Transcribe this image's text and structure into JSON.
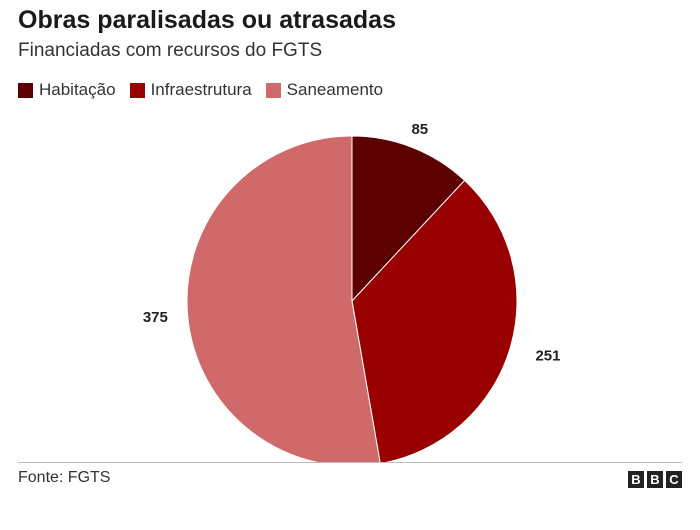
{
  "chart_data": {
    "type": "pie",
    "title": "Obras paralisadas ou atrasadas",
    "subtitle": "Financiadas com recursos do FGTS",
    "categories": [
      "Habitação",
      "Infraestrutura",
      "Saneamento"
    ],
    "values": [
      85,
      251,
      375
    ],
    "colors": [
      "#5c0000",
      "#990000",
      "#d06a6a"
    ],
    "legend_position": "top-left",
    "source": "Fonte: FGTS"
  },
  "branding": {
    "logo_letters": [
      "B",
      "B",
      "C"
    ]
  }
}
